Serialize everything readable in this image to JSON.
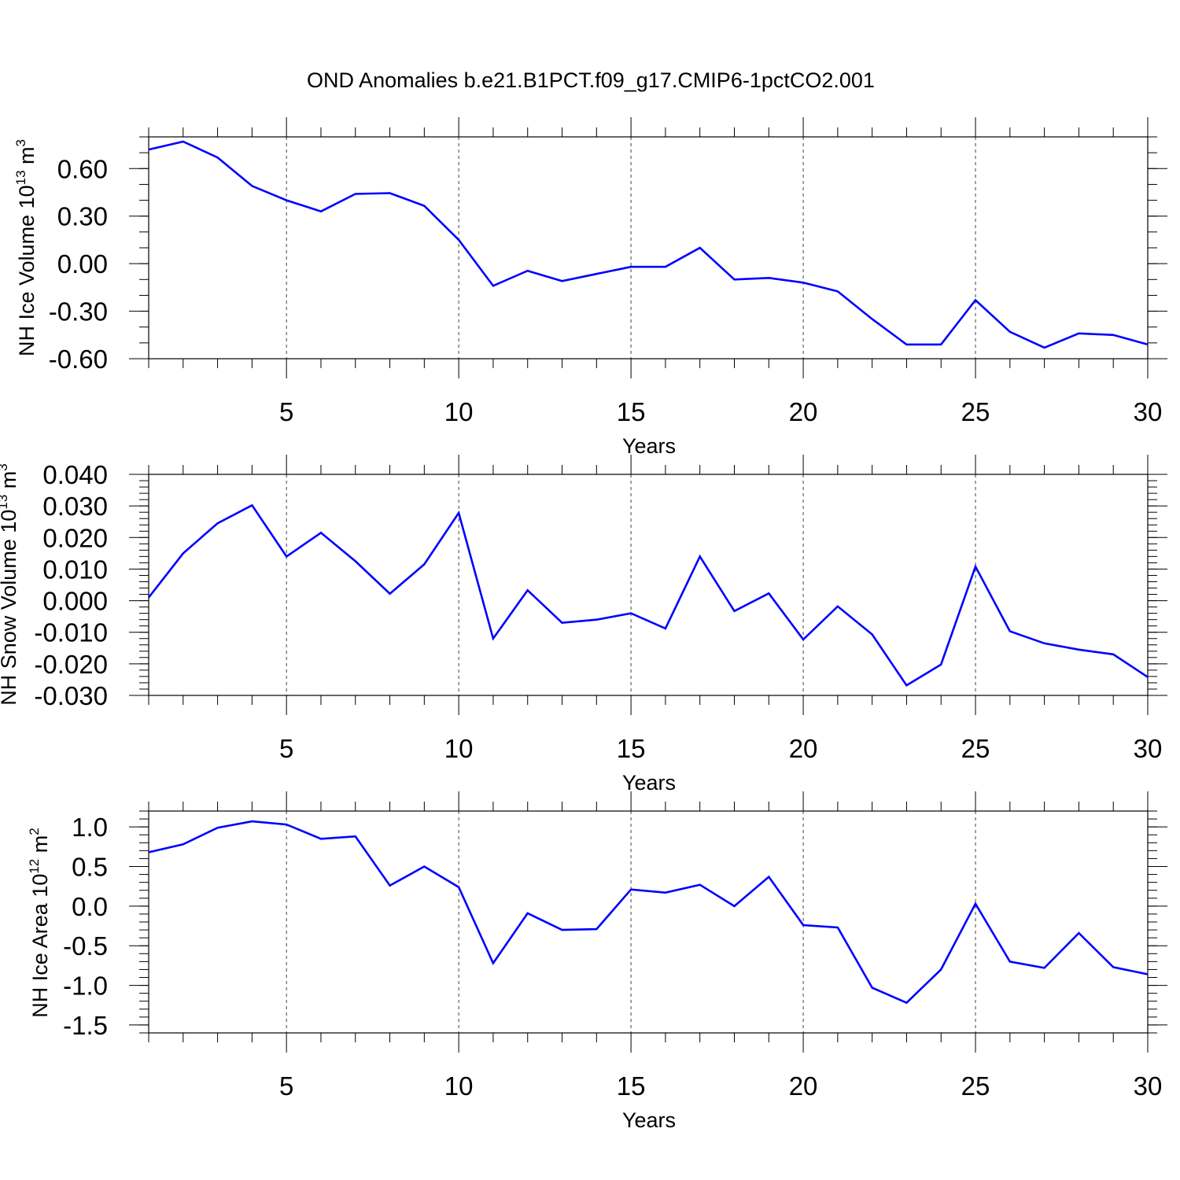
{
  "title": "OND Anomalies b.e21.B1PCT.f09_g17.CMIP6-1pctCO2.001",
  "line_color": "#0000ff",
  "chart_data": [
    {
      "type": "line",
      "name": "nh-ice-volume",
      "ylabel_main": "NH Ice Volume 10",
      "ylabel_exp": "13",
      "ylabel_unit": " m",
      "ylabel_unit_exp": "3",
      "xlabel": "Years",
      "xlim": [
        1,
        30
      ],
      "ylim": [
        -0.6,
        0.8
      ],
      "yticks": [
        -0.6,
        -0.3,
        0.0,
        0.3,
        0.6
      ],
      "ytick_labels": [
        "-0.60",
        "-0.30",
        "0.00",
        "0.30",
        "0.60"
      ],
      "yminor_step": 0.1,
      "xticks": [
        5,
        10,
        15,
        20,
        25,
        30
      ],
      "xtick_labels": [
        "5",
        "10",
        "15",
        "20",
        "25",
        "30"
      ],
      "x": [
        1,
        2,
        3,
        4,
        5,
        6,
        7,
        8,
        9,
        10,
        11,
        12,
        13,
        14,
        15,
        16,
        17,
        18,
        19,
        20,
        21,
        22,
        23,
        24,
        25,
        26,
        27,
        28,
        29,
        30
      ],
      "values": [
        0.72,
        0.77,
        0.67,
        0.49,
        0.4,
        0.33,
        0.44,
        0.445,
        0.365,
        0.15,
        -0.14,
        -0.045,
        -0.11,
        -0.065,
        -0.02,
        -0.02,
        0.1,
        -0.1,
        -0.09,
        -0.12,
        -0.175,
        -0.35,
        -0.51,
        -0.51,
        -0.23,
        -0.43,
        -0.53,
        -0.44,
        -0.45,
        -0.51
      ]
    },
    {
      "type": "line",
      "name": "nh-snow-volume",
      "ylabel_main": "NH Snow Volume 10",
      "ylabel_exp": "13",
      "ylabel_unit": " m",
      "ylabel_unit_exp": "3",
      "xlabel": "Years",
      "xlim": [
        1,
        30
      ],
      "ylim": [
        -0.03,
        0.04
      ],
      "yticks": [
        -0.03,
        -0.02,
        -0.01,
        0.0,
        0.01,
        0.02,
        0.03,
        0.04
      ],
      "ytick_labels": [
        "-0.030",
        "-0.020",
        "-0.010",
        "0.000",
        "0.010",
        "0.020",
        "0.030",
        "0.040"
      ],
      "yminor_step": 0.002,
      "xticks": [
        5,
        10,
        15,
        20,
        25,
        30
      ],
      "xtick_labels": [
        "5",
        "10",
        "15",
        "20",
        "25",
        "30"
      ],
      "x": [
        1,
        2,
        3,
        4,
        5,
        6,
        7,
        8,
        9,
        10,
        11,
        12,
        13,
        14,
        15,
        16,
        17,
        18,
        19,
        20,
        21,
        22,
        23,
        24,
        25,
        26,
        27,
        28,
        29,
        30
      ],
      "values": [
        0.001,
        0.015,
        0.0245,
        0.0302,
        0.014,
        0.0215,
        0.0125,
        0.0022,
        0.0115,
        0.0278,
        -0.012,
        0.0033,
        -0.007,
        -0.006,
        -0.004,
        -0.0088,
        0.014,
        -0.0033,
        0.0023,
        -0.0123,
        -0.0018,
        -0.0107,
        -0.0268,
        -0.0202,
        0.0108,
        -0.0097,
        -0.0135,
        -0.0155,
        -0.017,
        -0.0242
      ]
    },
    {
      "type": "line",
      "name": "nh-ice-area",
      "ylabel_main": "NH Ice Area 10",
      "ylabel_exp": "12",
      "ylabel_unit": " m",
      "ylabel_unit_exp": "2",
      "xlabel": "Years",
      "xlim": [
        1,
        30
      ],
      "ylim": [
        -1.6,
        1.2
      ],
      "yticks": [
        -1.5,
        -1.0,
        -0.5,
        0.0,
        0.5,
        1.0
      ],
      "ytick_labels": [
        "-1.5",
        "-1.0",
        "-0.5",
        "0.0",
        "0.5",
        "1.0"
      ],
      "yminor_step": 0.1,
      "xticks": [
        5,
        10,
        15,
        20,
        25,
        30
      ],
      "xtick_labels": [
        "5",
        "10",
        "15",
        "20",
        "25",
        "30"
      ],
      "x": [
        1,
        2,
        3,
        4,
        5,
        6,
        7,
        8,
        9,
        10,
        11,
        12,
        13,
        14,
        15,
        16,
        17,
        18,
        19,
        20,
        21,
        22,
        23,
        24,
        25,
        26,
        27,
        28,
        29,
        30
      ],
      "values": [
        0.68,
        0.78,
        0.99,
        1.07,
        1.03,
        0.85,
        0.88,
        0.26,
        0.5,
        0.24,
        -0.72,
        -0.09,
        -0.3,
        -0.29,
        0.21,
        0.17,
        0.27,
        0.0,
        0.37,
        -0.24,
        -0.27,
        -1.03,
        -1.22,
        -0.8,
        0.03,
        -0.7,
        -0.78,
        -0.34,
        -0.77,
        -0.86
      ]
    }
  ]
}
